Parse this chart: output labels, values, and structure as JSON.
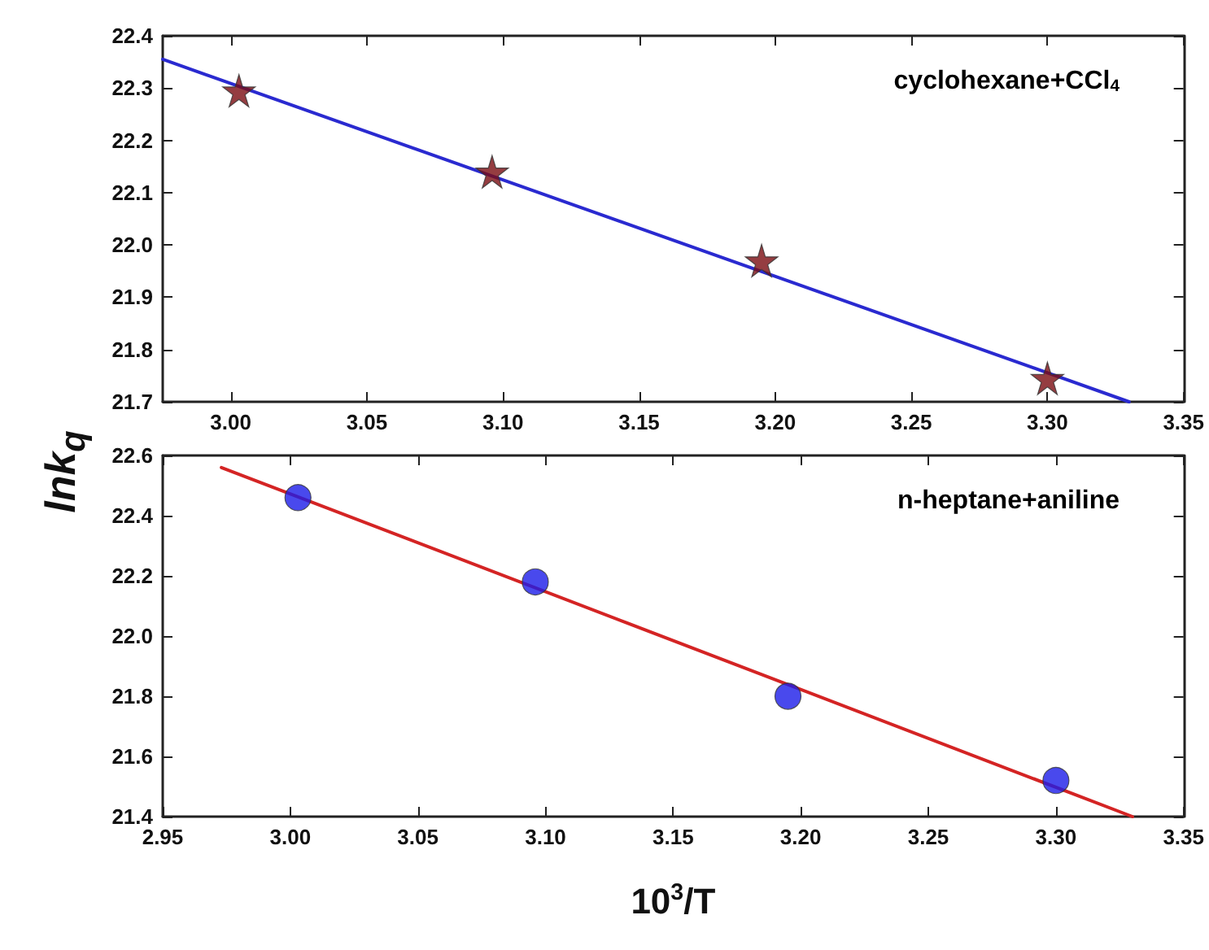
{
  "chart_data": [
    {
      "type": "scatter",
      "ylabel": "lnk$_{q}$",
      "annotations": [
        "cyclohexane+CCl$_{4}$"
      ],
      "xlim": [
        2.975,
        3.35
      ],
      "xticks": [
        {
          "value": 3.0,
          "label": "3.00"
        },
        3.05,
        {
          "value": 3.1,
          "label": "3.10"
        },
        3.15,
        {
          "value": 3.2,
          "label": "3.20"
        },
        3.25,
        {
          "value": 3.3,
          "label": "3.30"
        },
        3.35
      ],
      "ylim": [
        21.7,
        22.4
      ],
      "yticks": [
        21.7,
        21.8,
        21.9,
        {
          "value": 22.0,
          "label": "22.0"
        },
        22.1,
        22.2,
        22.3,
        22.4
      ],
      "grid": false,
      "series": [
        {
          "type": "scatter",
          "marker": "star",
          "color": "#7a0c12",
          "x": [
            3.003,
            3.096,
            3.195,
            3.3
          ],
          "values": [
            22.295,
            22.14,
            21.97,
            21.745
          ]
        },
        {
          "type": "line",
          "marker": "none",
          "line_style": "solid",
          "color": "#2a2ad0",
          "x": [
            2.975,
            3.33
          ],
          "values": [
            22.355,
            21.7
          ]
        }
      ]
    },
    {
      "type": "scatter",
      "xlabel": "10$^{3}$/T",
      "annotations": [
        "n-heptane+aniline"
      ],
      "xlim": [
        2.95,
        3.35
      ],
      "xticks": [
        2.95,
        {
          "value": 3.0,
          "label": "3.00"
        },
        3.05,
        {
          "value": 3.1,
          "label": "3.10"
        },
        3.15,
        {
          "value": 3.2,
          "label": "3.20"
        },
        3.25,
        {
          "value": 3.3,
          "label": "3.30"
        },
        3.35
      ],
      "ylim": [
        21.4,
        22.6
      ],
      "yticks": [
        21.4,
        21.6,
        21.8,
        {
          "value": 22.0,
          "label": "22.0"
        },
        22.2,
        22.4,
        22.6
      ],
      "grid": false,
      "series": [
        {
          "type": "scatter",
          "marker": "circle",
          "color": "#1c1ce8",
          "x": [
            3.003,
            3.096,
            3.195,
            3.3
          ],
          "values": [
            22.46,
            22.18,
            21.8,
            21.52
          ]
        },
        {
          "type": "line",
          "marker": "none",
          "line_style": "solid",
          "color": "#d42424",
          "x": [
            2.973,
            3.33
          ],
          "values": [
            22.56,
            21.4
          ]
        }
      ]
    }
  ]
}
